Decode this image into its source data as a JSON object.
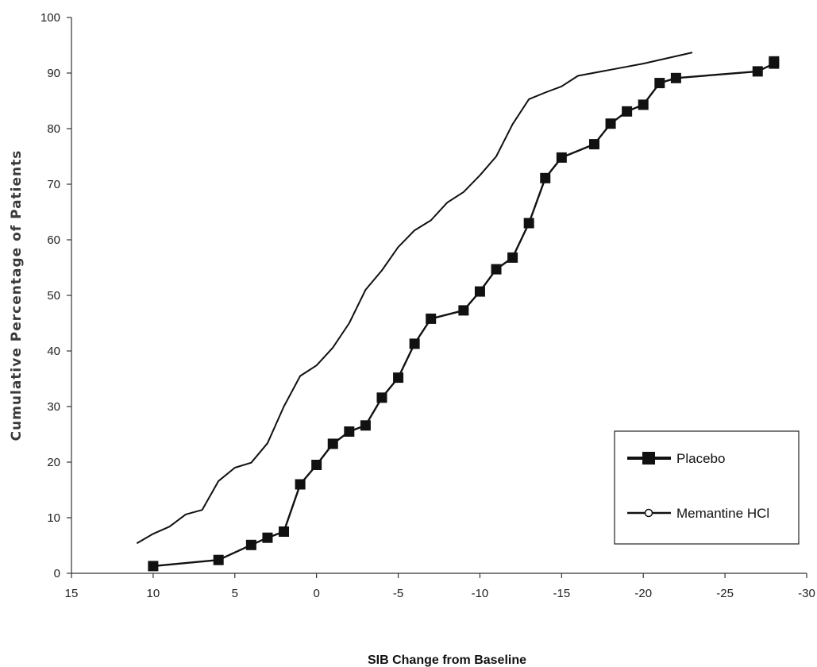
{
  "chart_data": {
    "type": "line",
    "title": "",
    "xlabel": "SIB Change from Baseline",
    "ylabel": "Cumulative Percentage of Patients",
    "xlim": [
      15,
      -30
    ],
    "ylim": [
      0,
      100
    ],
    "x_ticks": [
      15,
      10,
      5,
      0,
      -5,
      -10,
      -15,
      -20,
      -25,
      -30
    ],
    "y_ticks": [
      0,
      10,
      20,
      30,
      40,
      50,
      60,
      70,
      80,
      90,
      100
    ],
    "x_tick_labels": [
      "15",
      "10",
      "5",
      "0",
      "-5",
      "-10",
      "-15",
      "-20",
      "-25",
      "-30"
    ],
    "y_tick_labels": [
      "0",
      "10",
      "20",
      "30",
      "40",
      "50",
      "60",
      "70",
      "80",
      "90",
      "100"
    ],
    "grid": false,
    "legend_position": "bottom-right",
    "series": [
      {
        "name": "Placebo",
        "marker": "square",
        "color": "#111111",
        "x": [
          10,
          6,
          4,
          3,
          2,
          1,
          0,
          -1,
          -2,
          -3,
          -4,
          -5,
          -6,
          -7,
          -9,
          -10,
          -11,
          -12,
          -13,
          -14,
          -15,
          -17,
          -18,
          -19,
          -20,
          -21,
          -22,
          -27,
          -28,
          -28
        ],
        "y": [
          1.3,
          2.4,
          5.1,
          6.4,
          7.5,
          16,
          19.5,
          23.3,
          25.5,
          26.6,
          31.6,
          35.2,
          41.3,
          45.8,
          47.3,
          50.7,
          54.7,
          56.8,
          63,
          71.1,
          74.8,
          77.2,
          80.9,
          83.1,
          84.3,
          88.2,
          89.1,
          90.3,
          91.7,
          92.1
        ]
      },
      {
        "name": "Memantine HCl",
        "marker": "none",
        "color": "#111111",
        "x": [
          11,
          10,
          9,
          8,
          7,
          6,
          5,
          4,
          3,
          2,
          1,
          0,
          -1,
          -2,
          -3,
          -4,
          -5,
          -6,
          -7,
          -8,
          -9,
          -10,
          -11,
          -12,
          -13,
          -14,
          -15,
          -16,
          -18,
          -20,
          -23
        ],
        "y": [
          5.4,
          7.1,
          8.4,
          10.6,
          11.4,
          16.6,
          19,
          19.9,
          23.4,
          30,
          35.5,
          37.4,
          40.6,
          45,
          51,
          54.5,
          58.7,
          61.7,
          63.5,
          66.7,
          68.6,
          71.6,
          75,
          80.8,
          85.3,
          86.5,
          87.6,
          89.5,
          90.6,
          91.7,
          93.7
        ]
      }
    ]
  }
}
